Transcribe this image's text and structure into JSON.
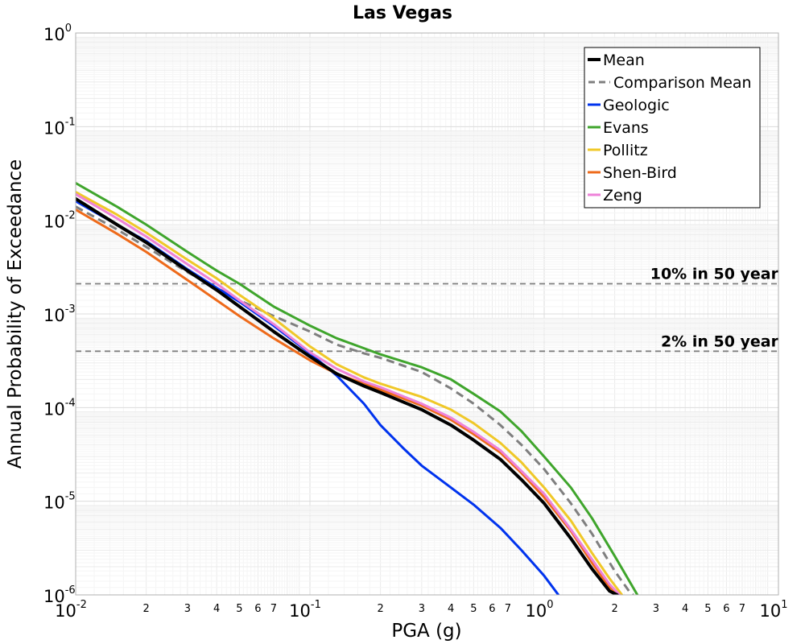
{
  "chart_data": {
    "type": "line",
    "title": "Las Vegas",
    "xlabel": "PGA (g)",
    "ylabel": "Annual Probability of Exceedance",
    "x_scale": "log",
    "y_scale": "log",
    "xlim": [
      0.01,
      10
    ],
    "ylim": [
      1e-06,
      1
    ],
    "grid": true,
    "legend_position": "top-right",
    "x_ticks": {
      "major": [
        {
          "base": "10",
          "exp": "-2",
          "value": 0.01
        },
        {
          "base": "10",
          "exp": "-1",
          "value": 0.1
        },
        {
          "base": "10",
          "exp": "0",
          "value": 1
        },
        {
          "base": "10",
          "exp": "1",
          "value": 10
        }
      ],
      "minor_labels": [
        "2",
        "3",
        "4",
        "5",
        "6",
        "7"
      ]
    },
    "y_ticks": {
      "major": [
        {
          "base": "10",
          "exp": "0",
          "value": 1
        },
        {
          "base": "10",
          "exp": "-1",
          "value": 0.1
        },
        {
          "base": "10",
          "exp": "-2",
          "value": 0.01
        },
        {
          "base": "10",
          "exp": "-3",
          "value": 0.001
        },
        {
          "base": "10",
          "exp": "-4",
          "value": 0.0001
        },
        {
          "base": "10",
          "exp": "-5",
          "value": 1e-05
        },
        {
          "base": "10",
          "exp": "-6",
          "value": 1e-06
        }
      ]
    },
    "reference_lines": [
      {
        "label": "10% in 50 year",
        "y": 0.0021,
        "color": "#7f7f7f",
        "dash": "dashed"
      },
      {
        "label": "2% in 50 year",
        "y": 0.0004,
        "color": "#7f7f7f",
        "dash": "dashed"
      }
    ],
    "series": [
      {
        "name": "Mean",
        "color": "#000000",
        "width": 4,
        "dash": "solid",
        "x": [
          0.01,
          0.015,
          0.02,
          0.03,
          0.04,
          0.05,
          0.07,
          0.1,
          0.13,
          0.17,
          0.2,
          0.3,
          0.4,
          0.5,
          0.65,
          0.8,
          1.0,
          1.3,
          1.6,
          1.9,
          2.05
        ],
        "y": [
          0.017,
          0.009,
          0.0058,
          0.0029,
          0.0018,
          0.0012,
          0.00065,
          0.00035,
          0.00023,
          0.00017,
          0.000145,
          9.5e-05,
          6.5e-05,
          4.5e-05,
          2.8e-05,
          1.7e-05,
          9.5e-06,
          4e-06,
          1.9e-06,
          1.1e-06,
          1e-06
        ]
      },
      {
        "name": "Comparison Mean",
        "color": "#7f7f7f",
        "width": 3,
        "dash": "dashed",
        "x": [
          0.01,
          0.015,
          0.02,
          0.03,
          0.04,
          0.05,
          0.07,
          0.1,
          0.13,
          0.17,
          0.2,
          0.3,
          0.4,
          0.5,
          0.65,
          0.8,
          1.0,
          1.3,
          1.6,
          2.0,
          2.3,
          2.4
        ],
        "y": [
          0.014,
          0.008,
          0.0052,
          0.0028,
          0.0019,
          0.0014,
          0.00095,
          0.00065,
          0.00047,
          0.00038,
          0.00034,
          0.00024,
          0.00016,
          0.00011,
          6.5e-05,
          4e-05,
          2.2e-05,
          9.5e-06,
          4.5e-06,
          1.8e-06,
          1.1e-06,
          1e-06
        ]
      },
      {
        "name": "Geologic",
        "color": "#0033ee",
        "width": 3,
        "dash": "solid",
        "x": [
          0.01,
          0.015,
          0.02,
          0.03,
          0.04,
          0.05,
          0.07,
          0.1,
          0.13,
          0.17,
          0.2,
          0.25,
          0.3,
          0.4,
          0.5,
          0.65,
          0.8,
          1.0,
          1.15
        ],
        "y": [
          0.016,
          0.009,
          0.006,
          0.003,
          0.0019,
          0.00135,
          0.00075,
          0.00038,
          0.00022,
          0.00011,
          6.5e-05,
          3.7e-05,
          2.4e-05,
          1.4e-05,
          9.2e-06,
          5.2e-06,
          3e-06,
          1.6e-06,
          1e-06
        ]
      },
      {
        "name": "Evans",
        "color": "#3fa52c",
        "width": 3,
        "dash": "solid",
        "x": [
          0.01,
          0.015,
          0.02,
          0.03,
          0.04,
          0.05,
          0.07,
          0.1,
          0.13,
          0.17,
          0.2,
          0.3,
          0.4,
          0.5,
          0.65,
          0.8,
          1.0,
          1.3,
          1.6,
          2.0,
          2.5
        ],
        "y": [
          0.025,
          0.014,
          0.009,
          0.0046,
          0.0029,
          0.0021,
          0.0012,
          0.00075,
          0.00055,
          0.00043,
          0.00037,
          0.00027,
          0.0002,
          0.00014,
          9.1e-05,
          5.6e-05,
          3e-05,
          1.4e-05,
          6.6e-06,
          2.6e-06,
          1e-06
        ]
      },
      {
        "name": "Pollitz",
        "color": "#f0c828",
        "width": 3,
        "dash": "solid",
        "x": [
          0.01,
          0.015,
          0.02,
          0.03,
          0.04,
          0.05,
          0.07,
          0.1,
          0.13,
          0.17,
          0.2,
          0.3,
          0.4,
          0.5,
          0.65,
          0.8,
          1.0,
          1.3,
          1.6,
          1.9,
          2.15
        ],
        "y": [
          0.02,
          0.0115,
          0.0074,
          0.0038,
          0.0024,
          0.0016,
          0.0009,
          0.00045,
          0.00029,
          0.00021,
          0.00018,
          0.00013,
          9.5e-05,
          6.8e-05,
          4.2e-05,
          2.6e-05,
          1.4e-05,
          6.2e-06,
          2.8e-06,
          1.5e-06,
          1e-06
        ]
      },
      {
        "name": "Shen-Bird",
        "color": "#ee6a1a",
        "width": 3,
        "dash": "solid",
        "x": [
          0.01,
          0.015,
          0.02,
          0.03,
          0.04,
          0.05,
          0.07,
          0.1,
          0.13,
          0.17,
          0.2,
          0.3,
          0.4,
          0.5,
          0.65,
          0.8,
          1.0,
          1.3,
          1.6,
          1.9,
          2.1
        ],
        "y": [
          0.013,
          0.0072,
          0.0046,
          0.0023,
          0.0014,
          0.00095,
          0.00055,
          0.00032,
          0.00023,
          0.00018,
          0.000155,
          0.000105,
          7.4e-05,
          5.2e-05,
          3.3e-05,
          2e-05,
          1.1e-05,
          4.8e-06,
          2.2e-06,
          1.2e-06,
          1e-06
        ]
      },
      {
        "name": "Zeng",
        "color": "#ee82d8",
        "width": 3,
        "dash": "solid",
        "x": [
          0.01,
          0.015,
          0.02,
          0.03,
          0.04,
          0.05,
          0.07,
          0.1,
          0.13,
          0.17,
          0.2,
          0.3,
          0.4,
          0.5,
          0.65,
          0.8,
          1.0,
          1.3,
          1.6,
          1.9,
          2.1
        ],
        "y": [
          0.019,
          0.0105,
          0.0067,
          0.0034,
          0.0021,
          0.0014,
          0.00078,
          0.00039,
          0.00026,
          0.00019,
          0.000165,
          0.00011,
          7.8e-05,
          5.5e-05,
          3.5e-05,
          2.1e-05,
          1.2e-05,
          5e-06,
          2.4e-06,
          1.3e-06,
          1e-06
        ]
      }
    ]
  }
}
